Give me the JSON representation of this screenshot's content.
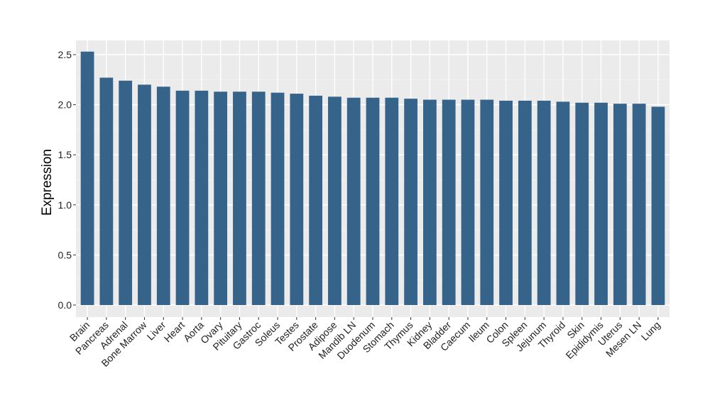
{
  "colors": {
    "panel_background": "#ebebeb",
    "grid_major": "#ffffff",
    "grid_minor": "#f5f5f5",
    "bar_fill": "#35638a",
    "text": "#000000",
    "axis_tick_text": "#222222"
  },
  "chart_data": {
    "type": "bar",
    "title": "",
    "xlabel": "",
    "ylabel": "Expression",
    "ylim": [
      0,
      2.6
    ],
    "yticks": [
      "0.0",
      "0.5",
      "1.0",
      "1.5",
      "2.0",
      "2.5"
    ],
    "grid": true,
    "legend": "none",
    "categories": [
      "Brain",
      "Pancreas",
      "Adrenal",
      "Bone Marrow",
      "Liver",
      "Heart",
      "Aorta",
      "Ovary",
      "Pituitary",
      "Gastroc",
      "Soleus",
      "Testes",
      "Prostate",
      "Adipose",
      "Mandib LN",
      "Duodenum",
      "Stomach",
      "Thymus",
      "Kidney",
      "Bladder",
      "Caecum",
      "Ileum",
      "Colon",
      "Spleen",
      "Jejunum",
      "Thyroid",
      "Skin",
      "Epididymis",
      "Uterus",
      "Mesen LN",
      "Lung"
    ],
    "values": [
      2.53,
      2.27,
      2.24,
      2.2,
      2.18,
      2.14,
      2.14,
      2.13,
      2.13,
      2.13,
      2.12,
      2.11,
      2.09,
      2.08,
      2.07,
      2.07,
      2.07,
      2.06,
      2.05,
      2.05,
      2.05,
      2.05,
      2.04,
      2.04,
      2.04,
      2.03,
      2.02,
      2.02,
      2.01,
      2.01,
      1.98
    ]
  }
}
